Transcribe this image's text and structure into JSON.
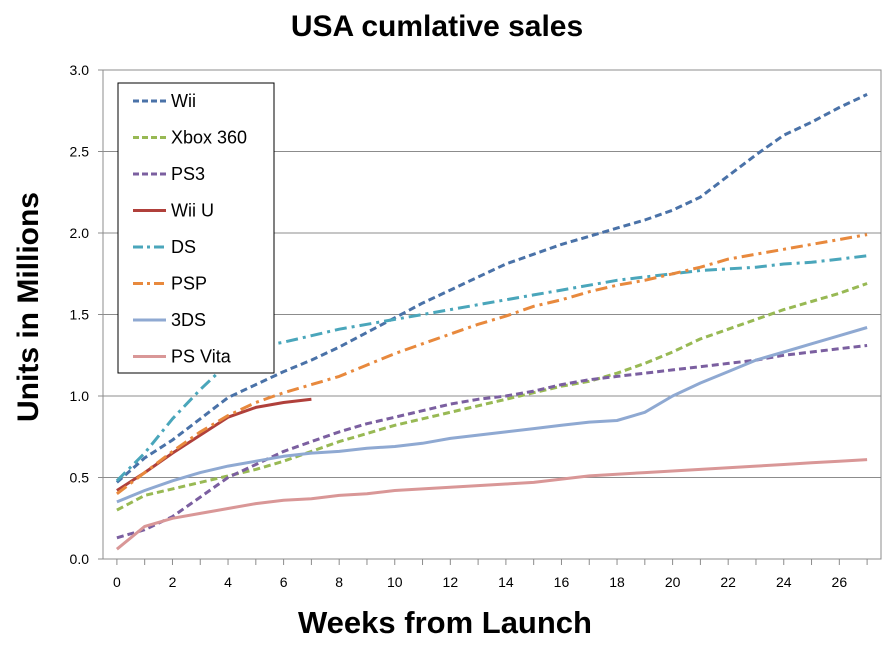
{
  "chart_data": {
    "type": "line",
    "title": "USA cumlative sales",
    "xlabel": "Weeks from Launch",
    "ylabel": "Units in Millions",
    "xlim": [
      -0.5,
      27.5
    ],
    "ylim": [
      0,
      3.0
    ],
    "x_ticks": [
      "0",
      "2",
      "4",
      "6",
      "8",
      "10",
      "12",
      "14",
      "16",
      "18",
      "20",
      "22",
      "24",
      "26"
    ],
    "y_ticks": [
      "0.0",
      "0.5",
      "1.0",
      "1.5",
      "2.0",
      "2.5",
      "3.0"
    ],
    "grid": "horizontal",
    "legend_position": "top-left",
    "series": [
      {
        "name": "Wii",
        "color": "#4a72a8",
        "dash": "dash",
        "x": [
          0,
          1,
          2,
          3,
          4,
          5,
          6,
          7,
          8,
          9,
          10,
          11,
          12,
          13,
          14,
          15,
          16,
          17,
          18,
          19,
          20,
          21,
          22,
          23,
          24,
          25,
          26,
          27
        ],
        "y": [
          0.47,
          0.62,
          0.73,
          0.86,
          0.99,
          1.07,
          1.15,
          1.22,
          1.3,
          1.39,
          1.48,
          1.57,
          1.65,
          1.73,
          1.81,
          1.87,
          1.93,
          1.98,
          2.03,
          2.08,
          2.14,
          2.22,
          2.35,
          2.48,
          2.6,
          2.68,
          2.77,
          2.85
        ]
      },
      {
        "name": "Xbox 360",
        "color": "#98b954",
        "dash": "dash",
        "x": [
          0,
          1,
          2,
          3,
          4,
          5,
          6,
          7,
          8,
          9,
          10,
          11,
          12,
          13,
          14,
          15,
          16,
          17,
          18,
          19,
          20,
          21,
          22,
          23,
          24,
          25,
          26,
          27
        ],
        "y": [
          0.3,
          0.39,
          0.43,
          0.47,
          0.51,
          0.55,
          0.6,
          0.66,
          0.72,
          0.77,
          0.82,
          0.86,
          0.9,
          0.94,
          0.98,
          1.02,
          1.06,
          1.09,
          1.14,
          1.2,
          1.27,
          1.35,
          1.41,
          1.47,
          1.53,
          1.58,
          1.63,
          1.69
        ]
      },
      {
        "name": "PS3",
        "color": "#7b5fa0",
        "dash": "dash",
        "x": [
          0,
          1,
          2,
          3,
          4,
          5,
          6,
          7,
          8,
          9,
          10,
          11,
          12,
          13,
          14,
          15,
          16,
          17,
          18,
          19,
          20,
          21,
          22,
          23,
          24,
          25,
          26,
          27
        ],
        "y": [
          0.13,
          0.18,
          0.26,
          0.38,
          0.5,
          0.58,
          0.66,
          0.72,
          0.78,
          0.83,
          0.87,
          0.91,
          0.95,
          0.98,
          1.0,
          1.03,
          1.07,
          1.1,
          1.12,
          1.14,
          1.16,
          1.18,
          1.2,
          1.22,
          1.25,
          1.27,
          1.29,
          1.31
        ]
      },
      {
        "name": "Wii U",
        "color": "#b0403b",
        "dash": "solid",
        "x": [
          0,
          1,
          2,
          3,
          4,
          5,
          6,
          7
        ],
        "y": [
          0.42,
          0.53,
          0.65,
          0.76,
          0.87,
          0.93,
          0.96,
          0.98
        ]
      },
      {
        "name": "DS",
        "color": "#4aa6bb",
        "dash": "dashdot",
        "x": [
          0,
          1,
          2,
          3,
          4,
          5,
          6,
          7,
          8,
          9,
          10,
          11,
          12,
          13,
          14,
          15,
          16,
          17,
          18,
          19,
          20,
          21,
          22,
          23,
          24,
          25,
          26,
          27
        ],
        "y": [
          0.48,
          0.65,
          0.86,
          1.04,
          1.2,
          1.3,
          1.33,
          1.37,
          1.41,
          1.44,
          1.47,
          1.5,
          1.53,
          1.56,
          1.59,
          1.62,
          1.65,
          1.68,
          1.71,
          1.73,
          1.75,
          1.77,
          1.78,
          1.79,
          1.81,
          1.82,
          1.84,
          1.86
        ]
      },
      {
        "name": "PSP",
        "color": "#e8893d",
        "dash": "dashdot",
        "x": [
          0,
          1,
          2,
          3,
          4,
          5,
          6,
          7,
          8,
          9,
          10,
          11,
          12,
          13,
          14,
          15,
          16,
          17,
          18,
          19,
          20,
          21,
          22,
          23,
          24,
          25,
          26,
          27
        ],
        "y": [
          0.4,
          0.53,
          0.66,
          0.78,
          0.88,
          0.96,
          1.02,
          1.07,
          1.12,
          1.19,
          1.26,
          1.32,
          1.38,
          1.44,
          1.49,
          1.55,
          1.59,
          1.64,
          1.68,
          1.71,
          1.75,
          1.79,
          1.84,
          1.87,
          1.9,
          1.93,
          1.96,
          1.99
        ]
      },
      {
        "name": "3DS",
        "color": "#8fa9d2",
        "dash": "solid",
        "x": [
          0,
          1,
          2,
          3,
          4,
          5,
          6,
          7,
          8,
          9,
          10,
          11,
          12,
          13,
          14,
          15,
          16,
          17,
          18,
          19,
          20,
          21,
          22,
          23,
          24,
          25,
          26,
          27
        ],
        "y": [
          0.35,
          0.42,
          0.48,
          0.53,
          0.57,
          0.6,
          0.63,
          0.65,
          0.66,
          0.68,
          0.69,
          0.71,
          0.74,
          0.76,
          0.78,
          0.8,
          0.82,
          0.84,
          0.85,
          0.9,
          1.0,
          1.08,
          1.15,
          1.22,
          1.27,
          1.32,
          1.37,
          1.42
        ]
      },
      {
        "name": "PS Vita",
        "color": "#d99797",
        "dash": "solid",
        "x": [
          0,
          1,
          2,
          3,
          4,
          5,
          6,
          7,
          8,
          9,
          10,
          11,
          12,
          13,
          14,
          15,
          16,
          17,
          18,
          19,
          20,
          21,
          22,
          23,
          24,
          25,
          26,
          27
        ],
        "y": [
          0.06,
          0.2,
          0.25,
          0.28,
          0.31,
          0.34,
          0.36,
          0.37,
          0.39,
          0.4,
          0.42,
          0.43,
          0.44,
          0.45,
          0.46,
          0.47,
          0.49,
          0.51,
          0.52,
          0.53,
          0.54,
          0.55,
          0.56,
          0.57,
          0.58,
          0.59,
          0.6,
          0.61
        ]
      }
    ]
  }
}
